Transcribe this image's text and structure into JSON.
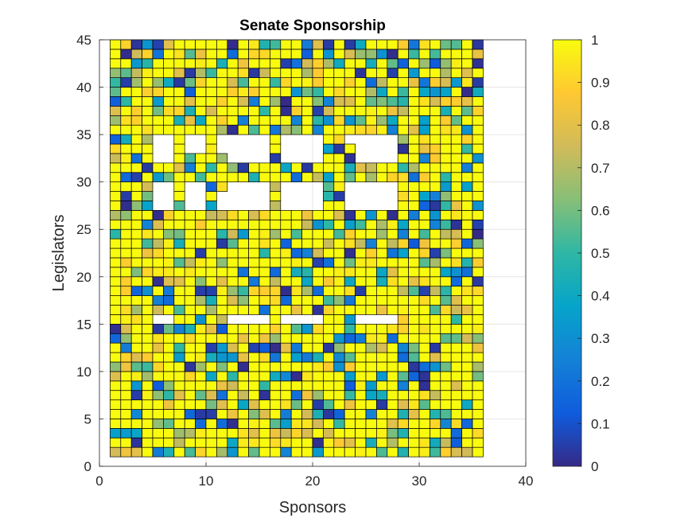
{
  "chart_data": {
    "type": "heatmap",
    "title": "Senate Sponsorship",
    "xlabel": "Sponsors",
    "ylabel": "Legislators",
    "xlim": [
      0,
      40
    ],
    "ylim": [
      0,
      45
    ],
    "xticks": [
      "0",
      "10",
      "20",
      "30",
      "40"
    ],
    "yticks": [
      "0",
      "5",
      "10",
      "15",
      "20",
      "25",
      "30",
      "35",
      "40",
      "45"
    ],
    "grid": true,
    "colorbar": {
      "limits": [
        0,
        1
      ],
      "ticks": [
        "0",
        "0.1",
        "0.2",
        "0.3",
        "0.4",
        "0.5",
        "0.6",
        "0.7",
        "0.8",
        "0.9",
        "1"
      ],
      "colormap": "parula",
      "colors": [
        "#352a87",
        "#0f5cdd",
        "#1481d6",
        "#06a4ca",
        "#2eb7a4",
        "#87bf77",
        "#d1bb59",
        "#fec832",
        "#f9fb0e"
      ]
    },
    "sponsors_x_range": [
      1,
      35
    ],
    "legislators_y_range": [
      1,
      44
    ],
    "empty_rows": [
      15,
      27,
      28,
      29,
      32,
      33,
      34
    ],
    "empty_columns": [
      5,
      6,
      8,
      9,
      11,
      12,
      13,
      14,
      15,
      17,
      18,
      19,
      20,
      23,
      24,
      25,
      26,
      27
    ],
    "rows_with_gaps": {
      "15": [
        5,
        6,
        12,
        13,
        14,
        15,
        17,
        18,
        19,
        20,
        24,
        25,
        26,
        27
      ],
      "27": [
        5,
        6,
        8,
        9,
        11,
        12,
        13,
        14,
        15,
        17,
        18,
        19,
        20,
        23,
        24,
        25,
        26,
        27
      ],
      "28": [
        5,
        6,
        8,
        9,
        11,
        12,
        13,
        14,
        15,
        17,
        18,
        19,
        20,
        23,
        24,
        25,
        26,
        27
      ],
      "29": [
        5,
        6,
        8,
        9,
        12,
        13,
        14,
        15,
        17,
        18,
        19,
        20,
        23,
        24,
        25,
        26,
        27
      ],
      "32": [
        5,
        6,
        12,
        13,
        14,
        15,
        17,
        18,
        19,
        20,
        24,
        25,
        26,
        27
      ],
      "33": [
        5,
        6,
        8,
        9,
        11,
        12,
        13,
        14,
        15,
        17,
        18,
        19,
        20,
        24,
        25,
        26,
        27
      ],
      "34": [
        5,
        6,
        8,
        9,
        11,
        12,
        13,
        14,
        15,
        17,
        18,
        19,
        20,
        23,
        24,
        25,
        26,
        27
      ]
    },
    "value_note": "Cell values vary 0–1 across the grid; predominantly high (~0.9–1)."
  }
}
